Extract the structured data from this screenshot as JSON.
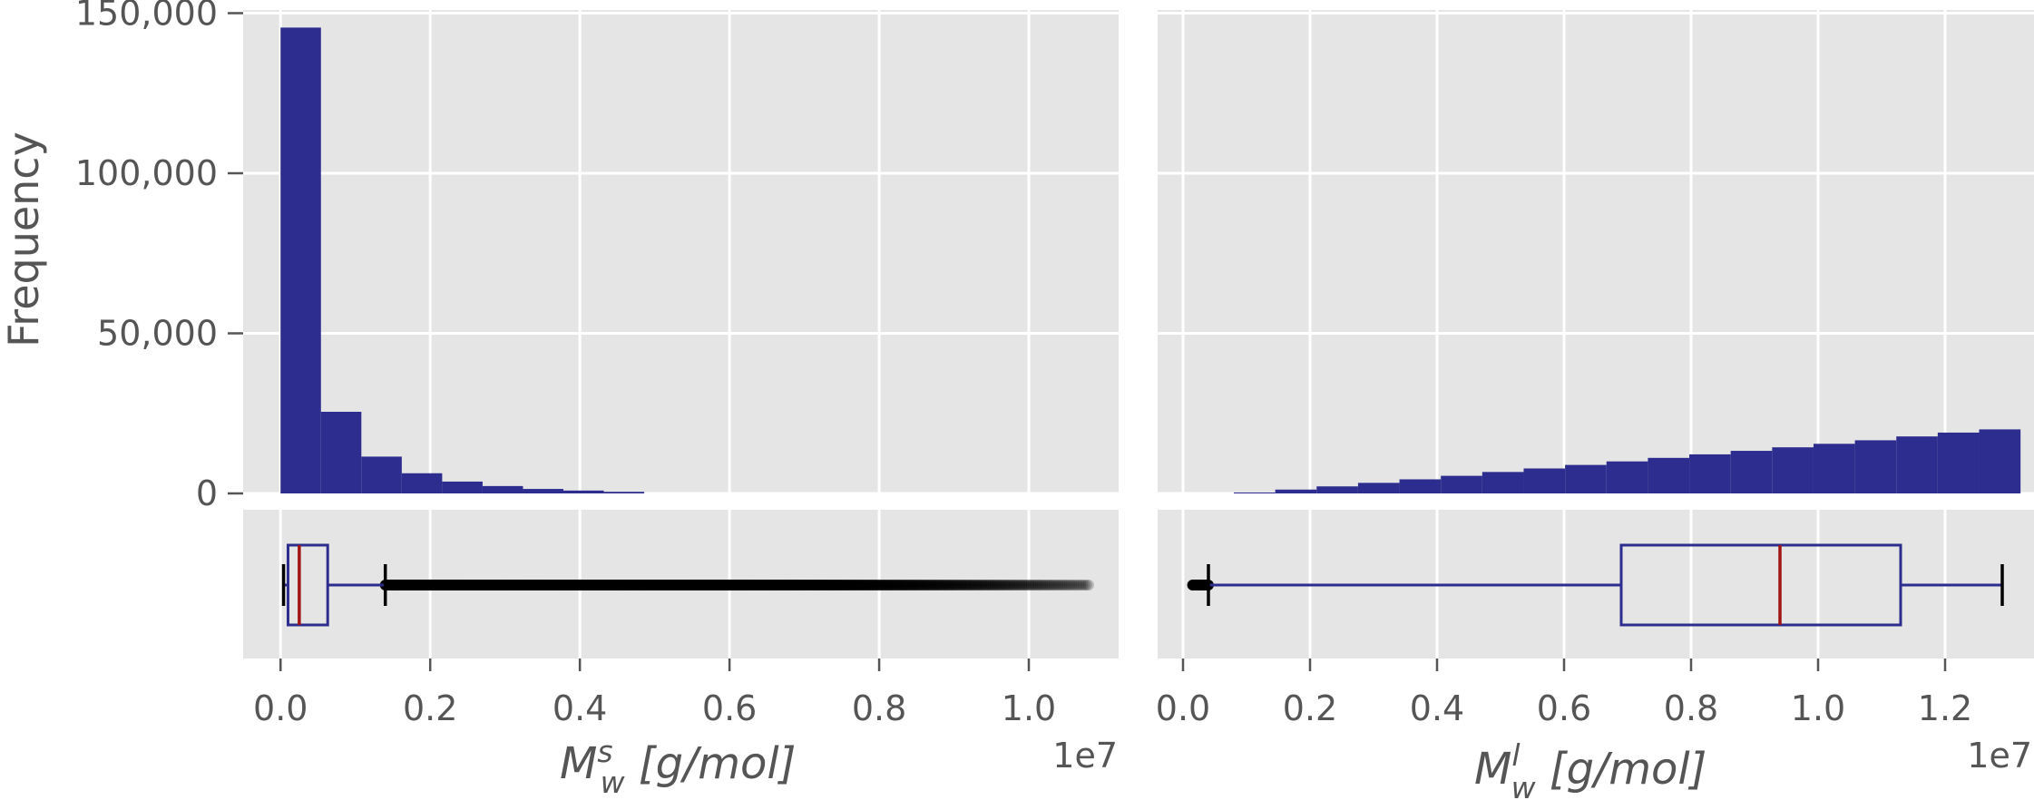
{
  "colors": {
    "panel_bg": "#e5e5e5",
    "grid": "#ffffff",
    "bar": "#2d2d8f",
    "box": "#2d2d8f",
    "median": "#a01414",
    "whisker_cap": "#000000",
    "flier": "#000000",
    "text": "#555555"
  },
  "chart_data": [
    {
      "type": "bar",
      "panel": "histogram",
      "subplot": "left",
      "ylabel": "Frequency",
      "xlim": [
        -0.05,
        1.12
      ],
      "ylim": [
        0,
        151000
      ],
      "xticks": [
        0.0,
        0.2,
        0.4,
        0.6,
        0.8,
        1.0
      ],
      "yticks": [
        0,
        50000,
        100000,
        150000
      ],
      "ytick_labels": [
        "0",
        "50,000",
        "100,000",
        "150,000"
      ],
      "bins": {
        "start": 0.0,
        "width": 0.054,
        "values": [
          145500,
          25500,
          11500,
          6300,
          3700,
          2300,
          1400,
          900,
          500
        ]
      },
      "grid": true
    },
    {
      "type": "box",
      "panel": "boxplot",
      "subplot": "left",
      "xlabel_main": "M",
      "xlabel_sup": "s",
      "xlabel_sub": "w",
      "xlabel_units": " [g/mol]",
      "xlim": [
        -0.05,
        1.12
      ],
      "xticks": [
        0.0,
        0.2,
        0.4,
        0.6,
        0.8,
        1.0
      ],
      "xtick_labels": [
        "0.0",
        "0.2",
        "0.4",
        "0.6",
        "0.8",
        "1.0"
      ],
      "offset_label": "1e7",
      "whisker_low": 0.004,
      "q1": 0.01,
      "median": 0.025,
      "q3": 0.063,
      "whisker_high": 0.14,
      "fliers_range": [
        0.14,
        1.08
      ],
      "grid": true
    },
    {
      "type": "bar",
      "panel": "histogram",
      "subplot": "right",
      "xlim": [
        -0.04,
        1.34
      ],
      "ylim": [
        0,
        151000
      ],
      "xticks": [
        0.0,
        0.2,
        0.4,
        0.6,
        0.8,
        1.0,
        1.2
      ],
      "yticks": [
        0,
        50000,
        100000,
        150000
      ],
      "bins": {
        "start": 0.08,
        "width": 0.0652,
        "values": [
          300,
          1200,
          2200,
          3300,
          4400,
          5500,
          6700,
          7800,
          8900,
          10000,
          11100,
          12200,
          13300,
          14400,
          15500,
          16600,
          17800,
          19000,
          20000
        ]
      },
      "grid": true
    },
    {
      "type": "box",
      "panel": "boxplot",
      "subplot": "right",
      "xlabel_main": "M",
      "xlabel_sup": "l",
      "xlabel_sub": "w",
      "xlabel_units": " [g/mol]",
      "xlim": [
        -0.04,
        1.34
      ],
      "xticks": [
        0.0,
        0.2,
        0.4,
        0.6,
        0.8,
        1.0,
        1.2
      ],
      "xtick_labels": [
        "0.0",
        "0.2",
        "0.4",
        "0.6",
        "0.8",
        "1.0",
        "1.2"
      ],
      "offset_label": "1e7",
      "whisker_low": 0.04,
      "q1": 0.69,
      "median": 0.94,
      "q3": 1.13,
      "whisker_high": 1.29,
      "fliers_range": [
        0.015,
        0.04
      ],
      "grid": true
    }
  ]
}
